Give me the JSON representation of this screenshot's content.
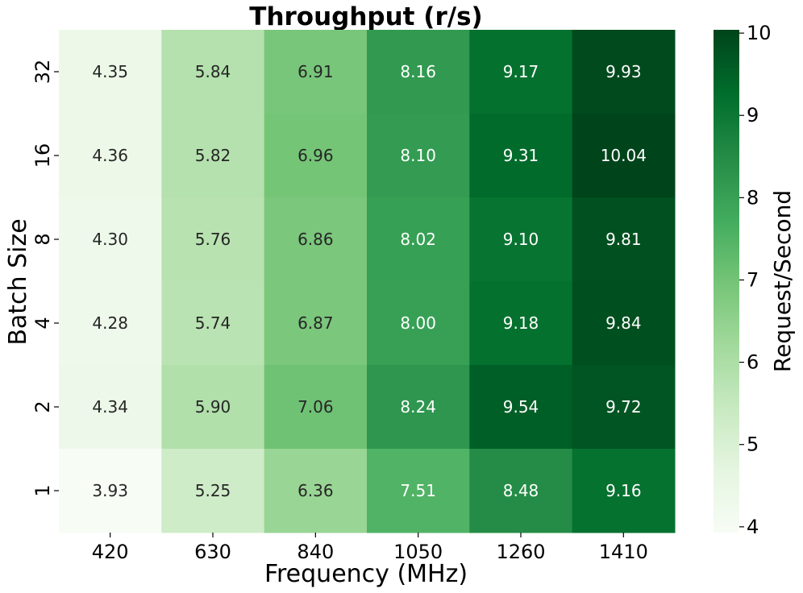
{
  "chart_data": {
    "type": "heatmap",
    "title": "Throughput (r/s)",
    "xlabel": "Frequency (MHz)",
    "ylabel": "Batch Size",
    "x_categories": [
      "420",
      "630",
      "840",
      "1050",
      "1260",
      "1410"
    ],
    "y_categories": [
      "32",
      "16",
      "8",
      "4",
      "2",
      "1"
    ],
    "values": [
      [
        4.35,
        5.84,
        6.91,
        8.16,
        9.17,
        9.93
      ],
      [
        4.36,
        5.82,
        6.96,
        8.1,
        9.31,
        10.04
      ],
      [
        4.3,
        5.76,
        6.86,
        8.02,
        9.1,
        9.81
      ],
      [
        4.28,
        5.74,
        6.87,
        8.0,
        9.18,
        9.84
      ],
      [
        4.34,
        5.9,
        7.06,
        8.24,
        9.54,
        9.72
      ],
      [
        3.93,
        5.25,
        6.36,
        7.51,
        8.48,
        9.16
      ]
    ],
    "value_labels": [
      [
        "4.35",
        "5.84",
        "6.91",
        "8.16",
        "9.17",
        "9.93"
      ],
      [
        "4.36",
        "5.82",
        "6.96",
        "8.10",
        "9.31",
        "10.04"
      ],
      [
        "4.30",
        "5.76",
        "6.86",
        "8.02",
        "9.10",
        "9.81"
      ],
      [
        "4.28",
        "5.74",
        "6.87",
        "8.00",
        "9.18",
        "9.84"
      ],
      [
        "4.34",
        "5.90",
        "7.06",
        "8.24",
        "9.54",
        "9.72"
      ],
      [
        "3.93",
        "5.25",
        "6.36",
        "7.51",
        "8.48",
        "9.16"
      ]
    ],
    "colorbar": {
      "label": "Request/Second",
      "range": [
        3.93,
        10.04
      ],
      "ticks": [
        "4",
        "5",
        "6",
        "7",
        "8",
        "9",
        "10"
      ],
      "colormap": "Greens",
      "colors": [
        "#f7fcf5",
        "#e5f5e0",
        "#c7e9c0",
        "#a1d99b",
        "#74c476",
        "#41ab5d",
        "#238b45",
        "#006d2c",
        "#00441b"
      ]
    },
    "grid": false
  }
}
